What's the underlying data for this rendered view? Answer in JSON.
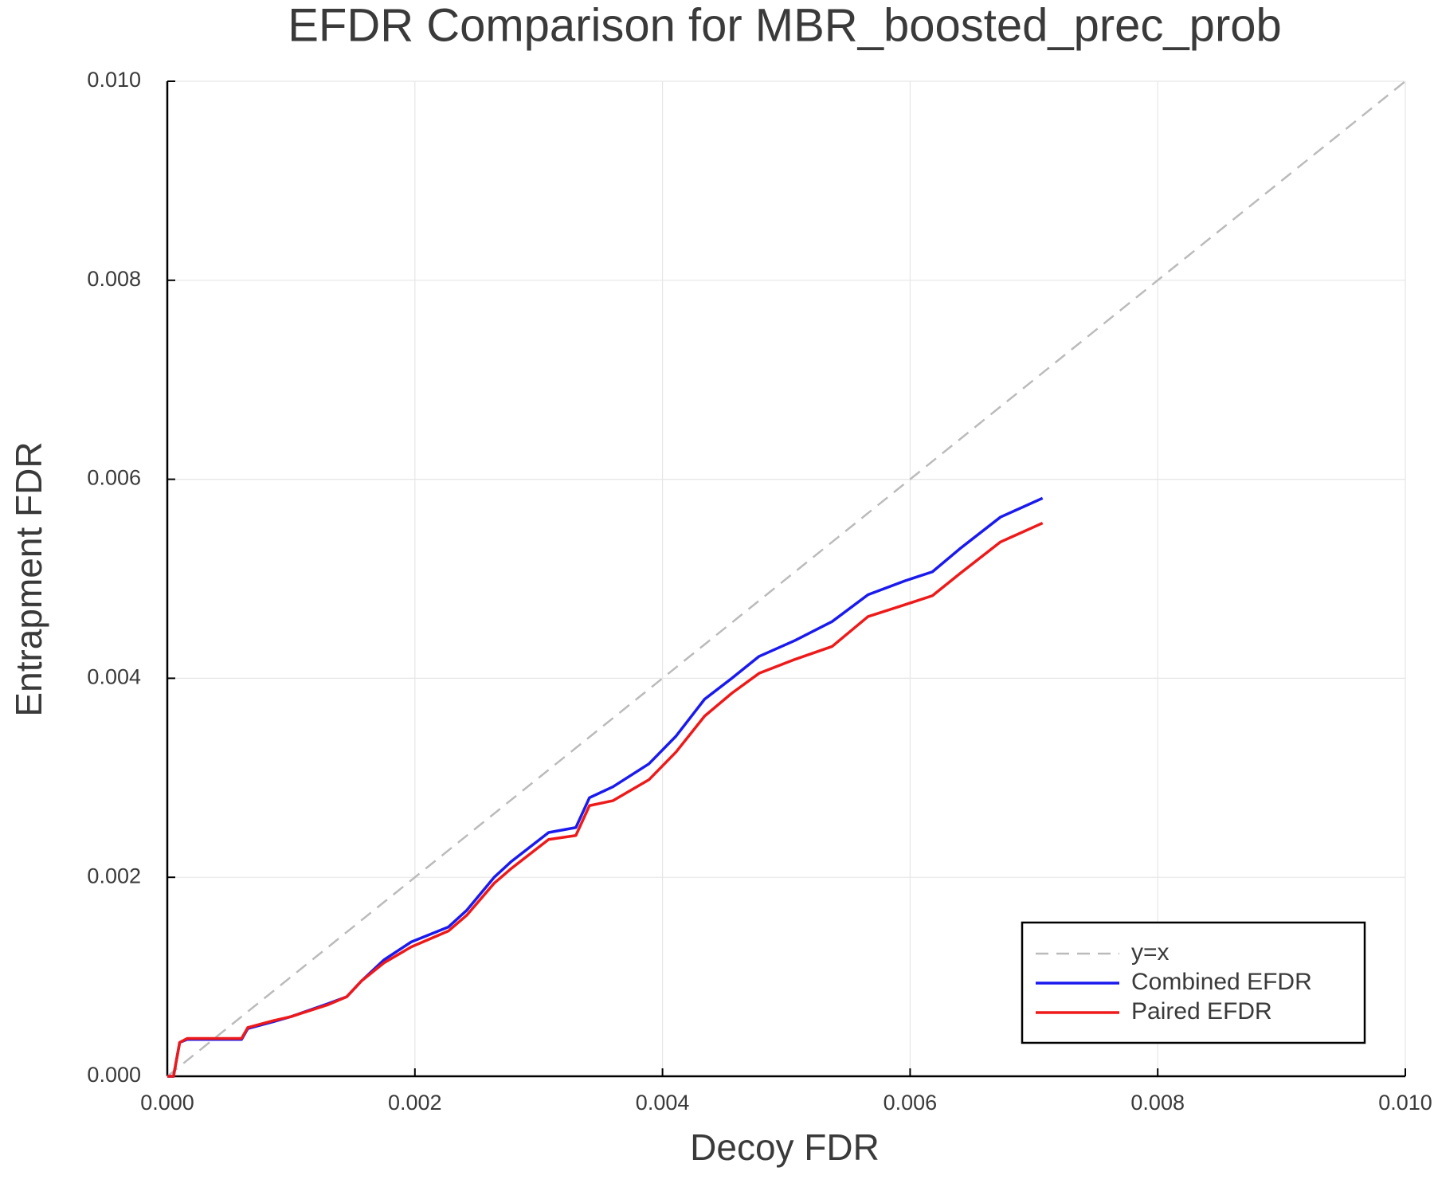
{
  "chart_data": {
    "type": "line",
    "title": "EFDR Comparison for MBR_boosted_prec_prob",
    "xlabel": "Decoy FDR",
    "ylabel": "Entrapment FDR",
    "xlim": [
      0,
      0.01
    ],
    "ylim": [
      0,
      0.01
    ],
    "xticks": [
      {
        "value": 0,
        "label": "0.000"
      },
      {
        "value": 0.002,
        "label": "0.002"
      },
      {
        "value": 0.004,
        "label": "0.004"
      },
      {
        "value": 0.006,
        "label": "0.006"
      },
      {
        "value": 0.008,
        "label": "0.008"
      },
      {
        "value": 0.01,
        "label": "0.010"
      }
    ],
    "yticks": [
      {
        "value": 0,
        "label": "0.000"
      },
      {
        "value": 0.002,
        "label": "0.002"
      },
      {
        "value": 0.004,
        "label": "0.004"
      },
      {
        "value": 0.006,
        "label": "0.006"
      },
      {
        "value": 0.008,
        "label": "0.008"
      },
      {
        "value": 0.01,
        "label": "0.010"
      }
    ],
    "grid": true,
    "legend": "lower right",
    "series": [
      {
        "name": "y=x",
        "color": "#bbbbbb",
        "dashed": true,
        "x": [
          0,
          0.01
        ],
        "values": [
          0,
          0.01
        ]
      },
      {
        "name": "Combined EFDR",
        "color": "#1a1aee",
        "dashed": false,
        "x": [
          0,
          5e-05,
          0.0001,
          0.00016,
          0.0006,
          0.00065,
          0.00086,
          0.001,
          0.0013,
          0.00145,
          0.00157,
          0.00175,
          0.00197,
          0.00227,
          0.00242,
          0.00264,
          0.00278,
          0.00308,
          0.0033,
          0.00341,
          0.0036,
          0.00389,
          0.00411,
          0.00434,
          0.00456,
          0.00478,
          0.00507,
          0.00537,
          0.00566,
          0.00596,
          0.00618,
          0.0064,
          0.00673,
          0.00707
        ],
        "values": [
          0,
          0,
          0.00034,
          0.00037,
          0.00037,
          0.00048,
          0.00055,
          0.0006,
          0.00073,
          0.0008,
          0.00096,
          0.00117,
          0.00135,
          0.0015,
          0.00167,
          0.002,
          0.00216,
          0.00245,
          0.0025,
          0.0028,
          0.00291,
          0.00314,
          0.00342,
          0.00379,
          0.004,
          0.00422,
          0.00438,
          0.00457,
          0.00484,
          0.00498,
          0.00507,
          0.0053,
          0.00562,
          0.00581
        ]
      },
      {
        "name": "Paired EFDR",
        "color": "#ee1a1a",
        "dashed": false,
        "x": [
          0,
          5e-05,
          0.0001,
          0.00016,
          0.0006,
          0.00065,
          0.00086,
          0.001,
          0.0013,
          0.00145,
          0.00157,
          0.00175,
          0.00197,
          0.00227,
          0.00242,
          0.00264,
          0.00278,
          0.00308,
          0.0033,
          0.00341,
          0.0036,
          0.00389,
          0.00411,
          0.00434,
          0.00456,
          0.00478,
          0.00507,
          0.00537,
          0.00566,
          0.00596,
          0.00618,
          0.0064,
          0.00673,
          0.00707
        ],
        "values": [
          0,
          0,
          0.00034,
          0.00038,
          0.00038,
          0.00049,
          0.00056,
          0.0006,
          0.00072,
          0.0008,
          0.00096,
          0.00114,
          0.0013,
          0.00146,
          0.00162,
          0.00194,
          0.00209,
          0.00238,
          0.00242,
          0.00272,
          0.00277,
          0.00298,
          0.00326,
          0.00362,
          0.00385,
          0.00405,
          0.00419,
          0.00432,
          0.00462,
          0.00474,
          0.00483,
          0.00505,
          0.00537,
          0.00556
        ]
      }
    ]
  }
}
